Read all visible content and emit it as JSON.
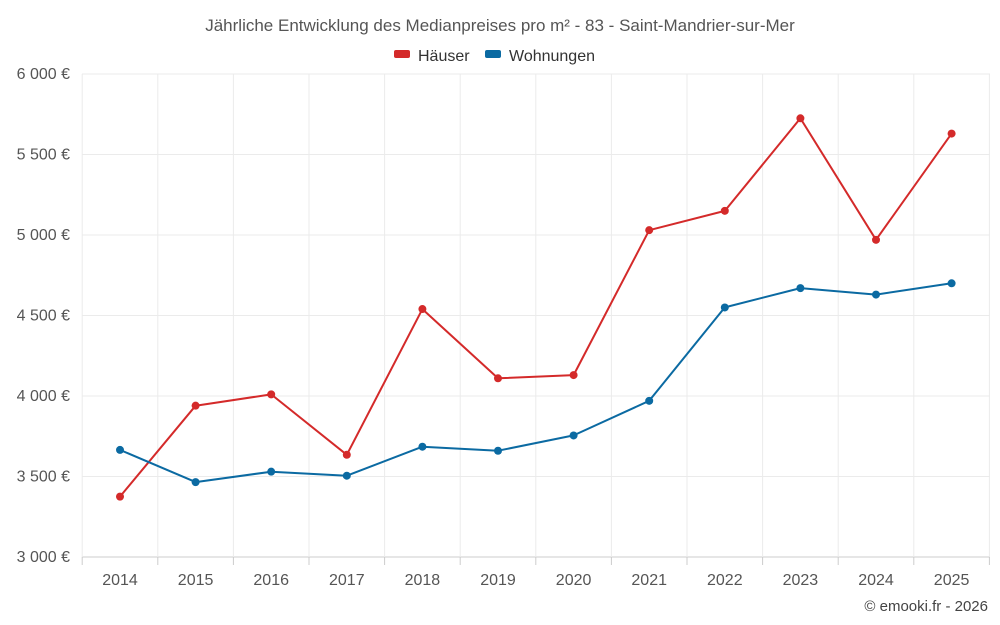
{
  "chart_data": {
    "type": "line",
    "title": "Jährliche Entwicklung des Medianpreises pro m² - 83 - Saint-Mandrier-sur-Mer",
    "categories": [
      "2014",
      "2015",
      "2016",
      "2017",
      "2018",
      "2019",
      "2020",
      "2021",
      "2022",
      "2023",
      "2024",
      "2025"
    ],
    "series": [
      {
        "name": "Häuser",
        "color": "#d42a2a",
        "values": [
          3375,
          3940,
          4010,
          3635,
          4540,
          4110,
          4130,
          5030,
          5150,
          5725,
          4970,
          5630
        ]
      },
      {
        "name": "Wohnungen",
        "color": "#0b6aa2",
        "values": [
          3665,
          3465,
          3530,
          3505,
          3685,
          3660,
          3755,
          3970,
          4550,
          4670,
          4630,
          4700
        ]
      }
    ],
    "ylim": [
      3000,
      6000
    ],
    "yticks": [
      3000,
      3500,
      4000,
      4500,
      5000,
      5500,
      6000
    ],
    "ytick_labels": [
      "3 000 €",
      "3 500 €",
      "4 000 €",
      "4 500 €",
      "5 000 €",
      "5 500 €",
      "6 000 €"
    ],
    "grid": true,
    "legend_position": "top-center"
  },
  "credit": "© emooki.fr - 2026"
}
